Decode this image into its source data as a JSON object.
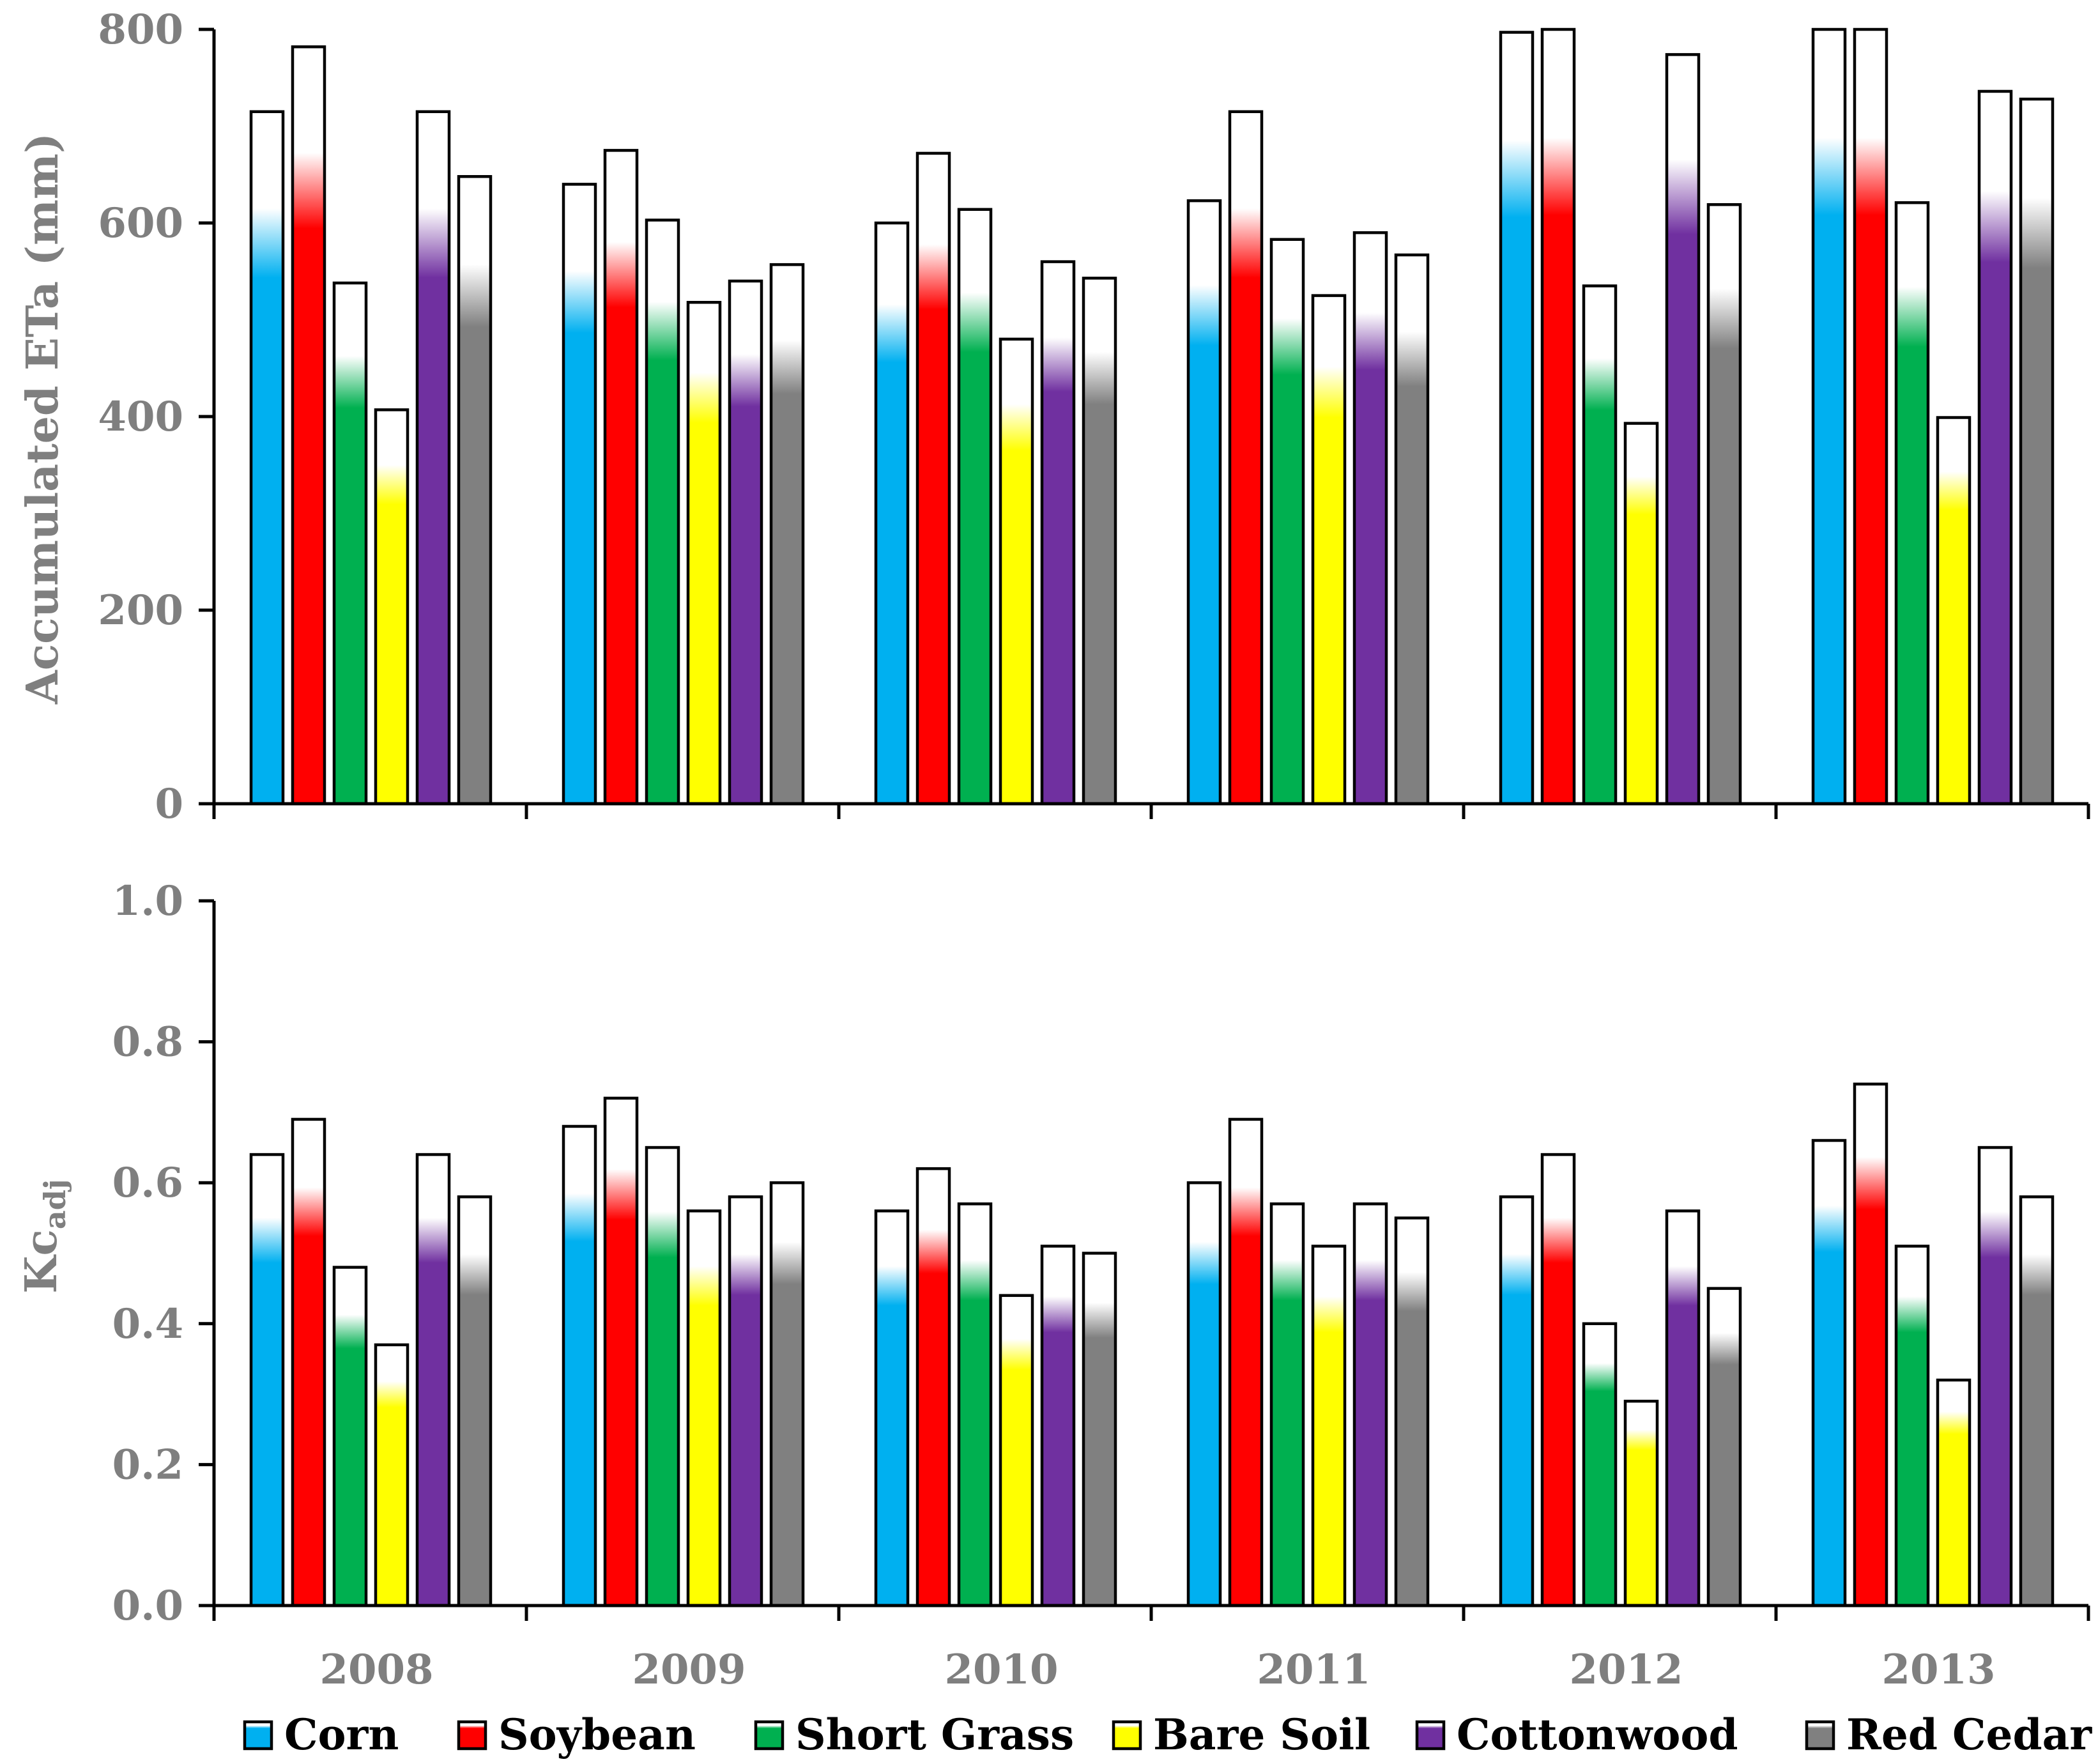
{
  "chart_data": [
    {
      "type": "bar",
      "id": "eta",
      "ylabel": "Accumulated ETa (mm)",
      "ylim": [
        0,
        800
      ],
      "yticks": [
        "0",
        "200",
        "400",
        "600",
        "800"
      ],
      "ytick_values": [
        0,
        200,
        400,
        600,
        800
      ],
      "categories": [
        "2008",
        "2009",
        "2010",
        "2011",
        "2012",
        "2013"
      ],
      "series": [
        {
          "name": "Corn",
          "values": [
            715,
            640,
            600,
            623,
            797,
            800
          ]
        },
        {
          "name": "Soybean",
          "values": [
            782,
            675,
            672,
            715,
            800,
            800
          ]
        },
        {
          "name": "Short Grass",
          "values": [
            538,
            603,
            614,
            583,
            535,
            621
          ]
        },
        {
          "name": "Bare Soil",
          "values": [
            407,
            518,
            480,
            525,
            393,
            399
          ]
        },
        {
          "name": "Cottonwood",
          "values": [
            715,
            540,
            560,
            590,
            774,
            736
          ]
        },
        {
          "name": "Red Cedar",
          "values": [
            648,
            557,
            543,
            567,
            619,
            728
          ]
        }
      ]
    },
    {
      "type": "bar",
      "id": "kc",
      "ylabel": "Kc",
      "ylabel_sub": "adj",
      "ylim": [
        0,
        1.0
      ],
      "yticks": [
        "0.0",
        "0.2",
        "0.4",
        "0.6",
        "0.8",
        "1.0"
      ],
      "ytick_values": [
        0,
        0.2,
        0.4,
        0.6,
        0.8,
        1.0
      ],
      "categories": [
        "2008",
        "2009",
        "2010",
        "2011",
        "2012",
        "2013"
      ],
      "series": [
        {
          "name": "Corn",
          "values": [
            0.64,
            0.68,
            0.56,
            0.6,
            0.58,
            0.66
          ]
        },
        {
          "name": "Soybean",
          "values": [
            0.69,
            0.72,
            0.62,
            0.69,
            0.64,
            0.74
          ]
        },
        {
          "name": "Short Grass",
          "values": [
            0.48,
            0.65,
            0.57,
            0.57,
            0.4,
            0.51
          ]
        },
        {
          "name": "Bare Soil",
          "values": [
            0.37,
            0.56,
            0.44,
            0.51,
            0.29,
            0.32
          ]
        },
        {
          "name": "Cottonwood",
          "values": [
            0.64,
            0.58,
            0.51,
            0.57,
            0.56,
            0.65
          ]
        },
        {
          "name": "Red Cedar",
          "values": [
            0.58,
            0.6,
            0.5,
            0.55,
            0.45,
            0.58
          ]
        }
      ]
    }
  ],
  "x_labels": [
    "2008",
    "2009",
    "2010",
    "2011",
    "2012",
    "2013"
  ],
  "legend": {
    "placement": "bottom",
    "items": [
      {
        "label": "Corn",
        "color": "#00b0f0"
      },
      {
        "label": "Soybean",
        "color": "#ff0000"
      },
      {
        "label": "Short Grass",
        "color": "#00b050"
      },
      {
        "label": "Bare Soil",
        "color": "#ffff00"
      },
      {
        "label": "Cottonwood",
        "color": "#7030a0"
      },
      {
        "label": "Red Cedar",
        "color": "#808080"
      }
    ]
  }
}
